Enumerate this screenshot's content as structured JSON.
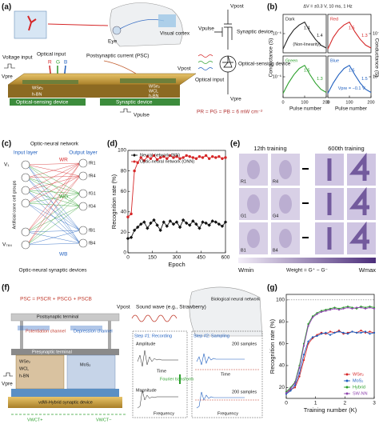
{
  "panel_labels": [
    "(a)",
    "(b)",
    "(c)",
    "(d)",
    "(e)",
    "(f)",
    "(g)"
  ],
  "a": {
    "eye": "Eye",
    "visual_cortex": "Visual cortex",
    "voltage_input": "Voltage input",
    "optical_input": "Optical input",
    "r": "R",
    "g": "G",
    "b": "B",
    "psc": "Postsynaptic current (PSC)",
    "wse2_left": "WSe₂",
    "hbn_left": "h-BN",
    "wse2_right": "WSe₂",
    "wcl": "WCL",
    "hbn_right": "h-BN",
    "sensing_device": "Optical-sensing device",
    "synaptic_device": "Synaptic device",
    "vpre": "Vpre",
    "vpost": "Vpost",
    "vpulse": "Vpulse"
  },
  "a_circuit": {
    "vpost": "Vpost",
    "vpulse": "Vpulse",
    "synaptic": "Synaptic device",
    "optical_input": "Optical input",
    "sensing": "Optical-sensing device",
    "vpre": "Vpre",
    "power": "PR = PG = PB = 6 mW cm⁻²"
  },
  "b": {
    "title": "ΔV = ±0.3 V, 10 ms, 1 Hz",
    "ylabel": "Conductance (S)",
    "xlabel": "Pulse number"
  },
  "c": {
    "title": "Optic-neural network",
    "input_layer": "Input layer",
    "output_layer": "Output layer",
    "cone_groups": "Artificial cone cell groups",
    "devices": "Optic-neural synaptic devices",
    "v1": "V₁",
    "v784": "V₇₈₄",
    "wr": "WR",
    "wg": "WG",
    "wb": "WB",
    "outputs": [
      "fR1",
      "fR4",
      "fG1",
      "fG4",
      "fB1",
      "fB4"
    ]
  },
  "e": {
    "t12": "12th training",
    "t600": "600th training",
    "tiles": [
      "R1",
      "R4",
      "G1",
      "G4",
      "B1",
      "B4"
    ],
    "wmin": "Wmin",
    "weight": "Weight = G⁺ − G⁻",
    "wmax": "Wmax"
  },
  "f": {
    "psc": "PSC = PSCR + PSCG + PSCB",
    "post_terminal": "Postsynaptic terminal",
    "potentiation": "Potentiation channel",
    "depression": "Depression channel",
    "pre_terminal": "Presynaptic terminal",
    "wse2": "WSe₂",
    "wcl": "WCL",
    "hbn": "h-BN",
    "mos2": "MoS₂",
    "hybrid": "vdW-Hybrid synaptic device",
    "vpre": "Vpre",
    "vpost": "Vpost",
    "vwct_plus": "VWCT+",
    "vwct_minus": "VWCT−",
    "sound": "Sound wave (e.g., Strawberry)",
    "bio": "Biological neural network",
    "step1": "Step #1: Recording",
    "step2": "Step #2: Sampling",
    "amplitude": "Amplitude",
    "time1": "Time",
    "magnitude": "Magnitude",
    "freq1": "Frequency",
    "fourier": "Fourier transform",
    "samples1": "200 samples",
    "samples2": "200 samples",
    "time2": "Time",
    "freq2": "Frequency"
  },
  "chart_data": [
    {
      "type": "line",
      "title": "Dark",
      "color": "#222222",
      "x": [
        0,
        25,
        50,
        75,
        100,
        125,
        150,
        175,
        200
      ],
      "values": [
        2e-07,
        8e-07,
        1.2e-06,
        1.45e-06,
        1.6e-06,
        1.1e-06,
        7e-07,
        4e-07,
        2.5e-07
      ],
      "xlim": [
        0,
        200
      ],
      "ylim": [
        0,
        2e-06
      ],
      "yticks": [
        {
          "value": 1e-06,
          "label": "10⁻⁶"
        }
      ],
      "ytick_side": "left",
      "notes": [
        "1.4",
        "1.4",
        "(Non-linearity)"
      ]
    },
    {
      "type": "line",
      "title": "Red",
      "color": "#d62728",
      "x": [
        0,
        25,
        50,
        75,
        100,
        125,
        150,
        175,
        200
      ],
      "values": [
        2e-08,
        8e-08,
        1.2e-07,
        1.45e-07,
        1.6e-07,
        1.1e-07,
        7e-08,
        4e-08,
        2.5e-08
      ],
      "xlim": [
        0,
        200
      ],
      "ylim": [
        0,
        2e-07
      ],
      "yticks": [
        {
          "value": 1e-07,
          "label": "10⁻⁷"
        }
      ],
      "ytick_side": "right",
      "notes": [
        "1.5",
        "1.3"
      ]
    },
    {
      "type": "line",
      "title": "Green",
      "color": "#2ca02c",
      "x": [
        0,
        25,
        50,
        75,
        100,
        125,
        150,
        175,
        200
      ],
      "values": [
        2e-07,
        7e-07,
        1.1e-06,
        1.4e-06,
        1.55e-06,
        1.1e-06,
        7e-07,
        4e-07,
        2.5e-07
      ],
      "xlim": [
        0,
        200
      ],
      "ylim": [
        0,
        2e-06
      ],
      "xticks": [
        0,
        100,
        200
      ],
      "yticks": [
        {
          "value": 1e-06,
          "label": "10⁻⁶"
        }
      ],
      "ytick_side": "left",
      "notes": [
        "1.5",
        "1.3"
      ]
    },
    {
      "type": "line",
      "title": "Blue",
      "color": "#1f5fbf",
      "x": [
        0,
        25,
        50,
        75,
        100,
        125,
        150,
        175,
        200
      ],
      "values": [
        2e-08,
        7e-08,
        1.1e-07,
        1.4e-07,
        1.55e-07,
        1.1e-07,
        7e-08,
        4e-08,
        2.5e-08
      ],
      "xlim": [
        0,
        200
      ],
      "ylim": [
        0,
        2e-07
      ],
      "xticks": [
        0,
        100,
        200
      ],
      "yticks": [
        {
          "value": 1e-07,
          "label": "10⁻⁷"
        }
      ],
      "ytick_side": "right",
      "notes": [
        "1.5",
        "1.5",
        "Vpre = −0.1 V"
      ]
    },
    {
      "type": "line",
      "xlabel": "Epoch",
      "ylabel": "Recognition rate (%)",
      "x": [
        0,
        20,
        40,
        60,
        80,
        100,
        120,
        140,
        160,
        180,
        200,
        220,
        240,
        260,
        280,
        300,
        320,
        340,
        360,
        380,
        400,
        420,
        440,
        460,
        480,
        500,
        520,
        540,
        560,
        580,
        600
      ],
      "series": [
        {
          "name": "Neural network (NN)",
          "color": "#111111",
          "marker": "diamond",
          "values": [
            14,
            15,
            22,
            25,
            28,
            30,
            24,
            29,
            32,
            27,
            22,
            30,
            26,
            31,
            28,
            30,
            25,
            32,
            29,
            27,
            31,
            28,
            24,
            30,
            29,
            27,
            31,
            30,
            28,
            26,
            30
          ]
        },
        {
          "name": "Optic-neural network (ONN)",
          "color": "#d62728",
          "marker": "circle",
          "values": [
            35,
            38,
            80,
            88,
            93,
            90,
            94,
            92,
            95,
            91,
            93,
            94,
            92,
            95,
            93,
            94,
            92,
            93,
            95,
            94,
            93,
            92,
            94,
            93,
            95,
            92,
            94,
            93,
            94,
            92,
            93
          ]
        }
      ],
      "xlim": [
        0,
        600
      ],
      "xticks": [
        0,
        150,
        300,
        450,
        600
      ],
      "ylim": [
        0,
        100
      ],
      "yticks": [
        0,
        20,
        40,
        60,
        80,
        100
      ],
      "ytick_side": "left",
      "hline": 100,
      "legend": "upper left"
    },
    {
      "type": "line",
      "xlabel": "Training number (K)",
      "ylabel": "Recognition rate (%)",
      "x": [
        0,
        0.15,
        0.3,
        0.45,
        0.6,
        0.75,
        0.9,
        1.05,
        1.2,
        1.35,
        1.5,
        1.65,
        1.8,
        1.95,
        2.1,
        2.25,
        2.4,
        2.55,
        2.7,
        2.85,
        3.0
      ],
      "series": [
        {
          "name": "WSe₂",
          "color": "#d62728",
          "marker": "circle",
          "values": [
            15,
            18,
            20,
            30,
            45,
            60,
            65,
            68,
            70,
            69,
            71,
            70,
            72,
            69,
            70,
            71,
            70,
            72,
            70,
            71,
            70
          ]
        },
        {
          "name": "MoS₂",
          "color": "#1f5fbf",
          "marker": "circle",
          "values": [
            14,
            17,
            22,
            33,
            50,
            62,
            66,
            67,
            69,
            70,
            68,
            70,
            71,
            70,
            69,
            71,
            70,
            70,
            71,
            69,
            70
          ]
        },
        {
          "name": "Hybrid",
          "color": "#2ca02c",
          "marker": "circle",
          "values": [
            16,
            20,
            25,
            40,
            60,
            78,
            85,
            88,
            90,
            91,
            92,
            93,
            92,
            93,
            94,
            93,
            92,
            94,
            93,
            94,
            93
          ]
        },
        {
          "name": "SW-NN",
          "color": "#8e44ad",
          "marker": "circle",
          "values": [
            15,
            19,
            24,
            38,
            58,
            76,
            84,
            87,
            89,
            90,
            91,
            92,
            91,
            92,
            93,
            92,
            93,
            93,
            92,
            93,
            92
          ]
        }
      ],
      "xlim": [
        0,
        3
      ],
      "xticks": [
        0,
        1,
        2,
        3
      ],
      "ylim": [
        10,
        105
      ],
      "yticks": [
        20,
        40,
        60,
        80,
        100
      ],
      "ytick_side": "left",
      "hline": 100,
      "legend": "lower right"
    }
  ]
}
